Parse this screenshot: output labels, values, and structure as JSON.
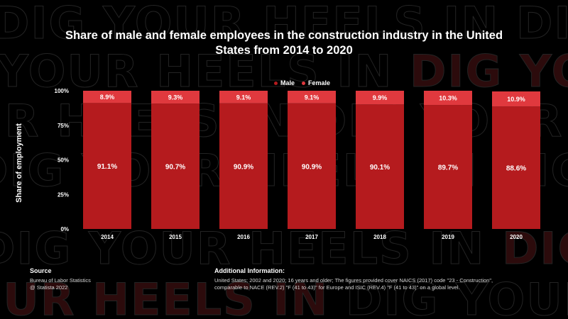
{
  "chart_data": {
    "type": "bar",
    "stacked": true,
    "title": "Share of male and female employees in the construction industry in the United States from 2014 to 2020",
    "categories": [
      "2014",
      "2015",
      "2016",
      "2017",
      "2018",
      "2019",
      "2020"
    ],
    "series": [
      {
        "name": "Male",
        "values": [
          91.1,
          90.7,
          90.9,
          90.9,
          90.1,
          89.7,
          88.6
        ],
        "labels": [
          "91.1%",
          "90.7%",
          "90.9%",
          "90.9%",
          "90.1%",
          "89.7%",
          "88.6%"
        ]
      },
      {
        "name": "Female",
        "values": [
          8.9,
          9.3,
          9.1,
          9.1,
          9.9,
          10.3,
          10.9
        ],
        "labels": [
          "8.9%",
          "9.3%",
          "9.1%",
          "9.1%",
          "9.9%",
          "10.3%",
          "10.9%"
        ]
      }
    ],
    "xlabel": "",
    "ylabel": "Share of employment",
    "ylim": [
      0,
      100
    ],
    "yticks": [
      "0%",
      "25%",
      "50%",
      "75%",
      "100%"
    ],
    "legend_position": "top-right",
    "grid": false
  },
  "colors": {
    "male": "#b51b1e",
    "female": "#e0393e",
    "background": "#000000",
    "watermark_outline": "#242424",
    "watermark_fill": "#2c0b0c"
  },
  "background_watermark": {
    "phrase": "DIG YOUR HEELS IN"
  },
  "footer": {
    "source_heading": "Source",
    "source_lines": [
      "Bureau of Labor Statistics",
      "@ Statista 2022"
    ],
    "info_heading": "Additional Information:",
    "info_lines": [
      "United States; 2002 and 2020; 16 years and older; The figures provided cover NAICS (2017) code \"23 - Construction\",",
      "comparable to NACE (REV.2) \"F (41 to 43)\" for Europe and ISIC (REV.4) \"F (41 to 43)\" on a global level."
    ]
  }
}
